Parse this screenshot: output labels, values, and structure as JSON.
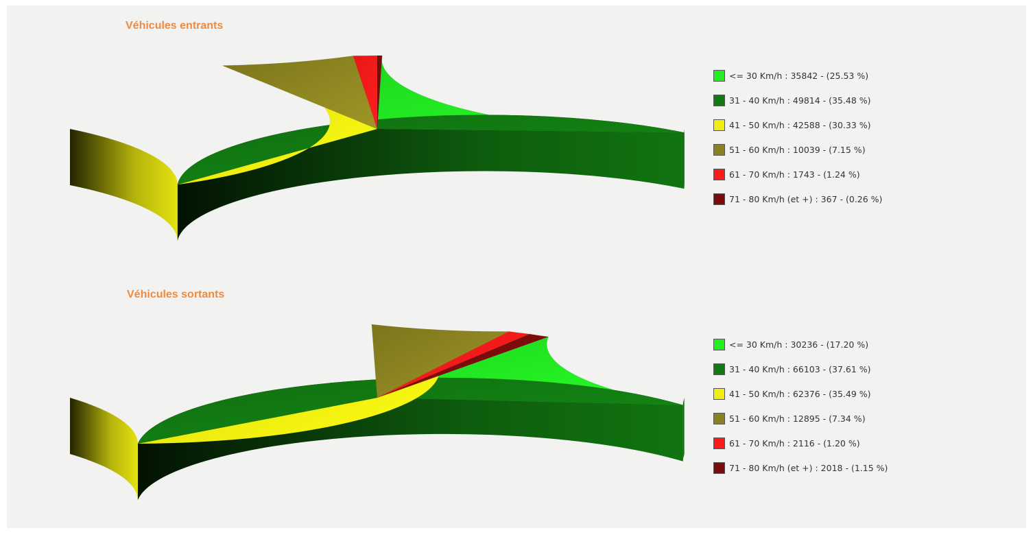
{
  "chart_data": [
    {
      "type": "pie",
      "title": "Véhicules entrants",
      "categories": [
        "<= 30 Km/h",
        "31 - 40 Km/h",
        "41 - 50 Km/h",
        "51 - 60 Km/h",
        "61 - 70 Km/h",
        "71 - 80 Km/h (et +)"
      ],
      "values": [
        35842,
        49814,
        42588,
        10039,
        1743,
        367
      ],
      "percent": [
        25.53,
        35.48,
        30.33,
        7.15,
        1.24,
        0.26
      ],
      "legend_labels": [
        "<= 30 Km/h : 35842 - (25.53 %)",
        "31 - 40 Km/h : 49814 - (35.48 %)",
        "41 - 50 Km/h : 42588 - (30.33 %)",
        "51 - 60 Km/h : 10039 - (7.15 %)",
        "61 - 70 Km/h : 1743 - (1.24 %)",
        "71 - 80 Km/h (et +) : 367 - (0.26 %)"
      ],
      "colors": [
        "#22ee22",
        "#127a12",
        "#f0ee10",
        "#8a8220",
        "#ff1a1a",
        "#7a0c0c"
      ],
      "legend_position": "right"
    },
    {
      "type": "pie",
      "title": "Véhicules sortants",
      "categories": [
        "<= 30 Km/h",
        "31 - 40 Km/h",
        "41 - 50 Km/h",
        "51 - 60 Km/h",
        "61 - 70 Km/h",
        "71 - 80 Km/h (et +)"
      ],
      "values": [
        30236,
        66103,
        62376,
        12895,
        2116,
        2018
      ],
      "percent": [
        17.2,
        37.61,
        35.49,
        7.34,
        1.2,
        1.15
      ],
      "legend_labels": [
        "<= 30 Km/h : 30236 - (17.20 %)",
        "31 - 40 Km/h : 66103 - (37.61 %)",
        "41 - 50 Km/h : 62376 - (35.49 %)",
        "51 - 60 Km/h : 12895 - (7.34 %)",
        "61 - 70 Km/h : 2116 - (1.20 %)",
        "71 - 80 Km/h (et +) : 2018 - (1.15 %)"
      ],
      "colors": [
        "#22ee22",
        "#127a12",
        "#f0ee10",
        "#8a8220",
        "#ff1a1a",
        "#7a0c0c"
      ],
      "legend_position": "right"
    }
  ]
}
